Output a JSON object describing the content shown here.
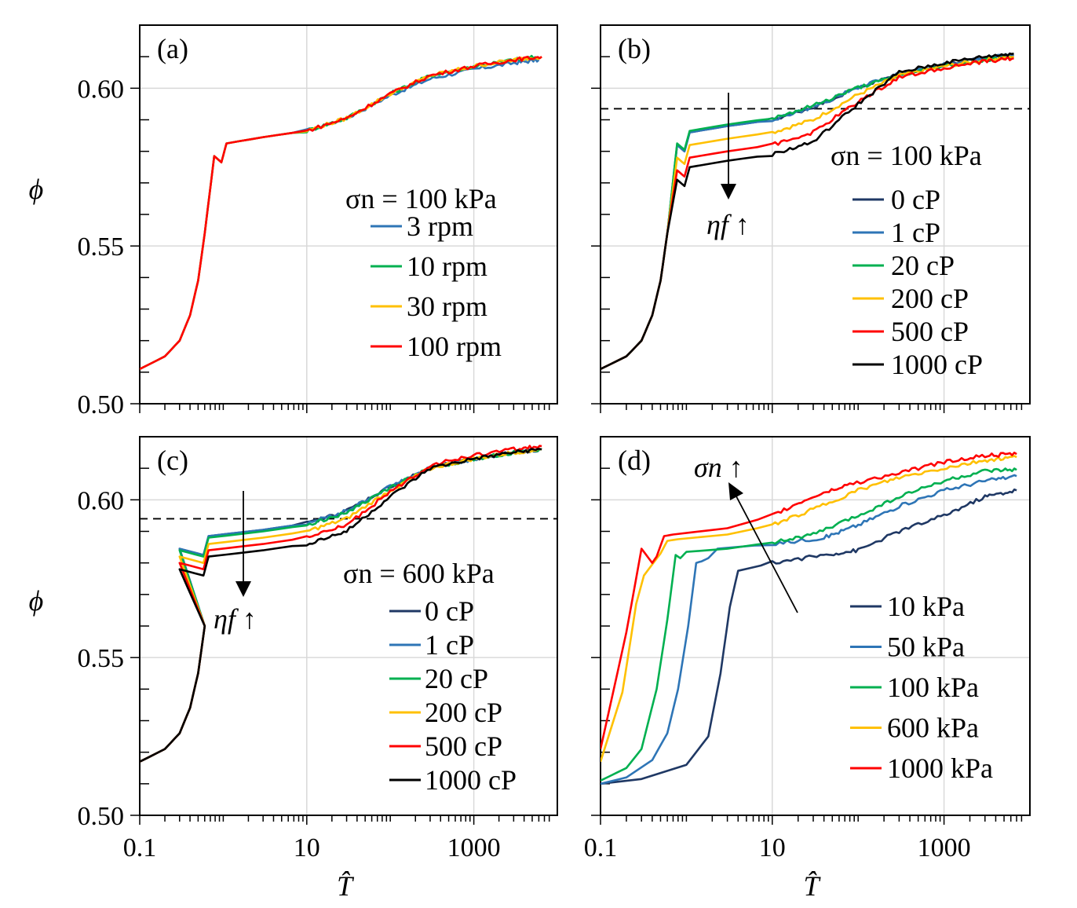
{
  "chart_data": [
    {
      "type": "line",
      "panel_label": "(a)",
      "x_scale": "log",
      "xlim": [
        0.1,
        10000
      ],
      "ylim": [
        0.5,
        0.62
      ],
      "y_ticks": [
        "0.50",
        "0.55",
        "0.60"
      ],
      "x_ticks": [],
      "ylabel": "ϕ",
      "xlabel": "",
      "grid": true,
      "legend_title": "σn = 100 kPa",
      "legend_placement": "center-right",
      "series": [
        {
          "name": "3 rpm",
          "color": "#2e75b6",
          "shape": "base",
          "end": [
            0.609,
            6000
          ],
          "wiggle": 0.0003
        },
        {
          "name": "10 rpm",
          "color": "#00b050",
          "shape": "base",
          "end": [
            0.61,
            6000
          ],
          "wiggle": 0.0003
        },
        {
          "name": "30 rpm",
          "color": "#ffc000",
          "shape": "base",
          "end": [
            0.61,
            7000
          ],
          "wiggle": 0.0002
        },
        {
          "name": "100 rpm",
          "color": "#ff0000",
          "shape": "base",
          "end": [
            0.61,
            6500
          ],
          "wiggle": 0.0004
        }
      ]
    },
    {
      "type": "line",
      "panel_label": "(b)",
      "x_scale": "log",
      "xlim": [
        0.1,
        10000
      ],
      "ylim": [
        0.5,
        0.62
      ],
      "y_ticks": [],
      "x_ticks": [],
      "ylabel": "",
      "xlabel": "",
      "grid": true,
      "dashed_line_y": 0.5935,
      "legend_title": "σn = 100 kPa",
      "legend_placement": "center-right",
      "annotation": "ηf ↑",
      "series": [
        {
          "name": "0 cP",
          "color": "#1f3864",
          "plateau": 0.588,
          "end": 0.6105
        },
        {
          "name": "1 cP",
          "color": "#2e75b6",
          "plateau": 0.588,
          "end": 0.6105
        },
        {
          "name": "20 cP",
          "color": "#00b050",
          "plateau": 0.5885,
          "end": 0.61
        },
        {
          "name": "200 cP",
          "color": "#ffc000",
          "plateau": 0.584,
          "end": 0.61
        },
        {
          "name": "500 cP",
          "color": "#ff0000",
          "plateau": 0.58,
          "end": 0.6095
        },
        {
          "name": "1000 cP",
          "color": "#000000",
          "plateau": 0.577,
          "end": 0.611
        }
      ]
    },
    {
      "type": "line",
      "panel_label": "(c)",
      "x_scale": "log",
      "xlim": [
        0.1,
        10000
      ],
      "ylim": [
        0.5,
        0.62
      ],
      "y_ticks": [
        "0.50",
        "0.55",
        "0.60"
      ],
      "x_ticks": [
        "0.1",
        "10",
        "1000"
      ],
      "ylabel": "ϕ",
      "xlabel": "T̂",
      "grid": true,
      "dashed_line_y": 0.594,
      "legend_title": "σn = 600 kPa",
      "legend_placement": "center-right",
      "annotation": "ηf ↑",
      "series": [
        {
          "name": "0 cP",
          "color": "#1f3864",
          "plateau": 0.5905,
          "end": 0.616
        },
        {
          "name": "1 cP",
          "color": "#2e75b6",
          "plateau": 0.5905,
          "end": 0.616
        },
        {
          "name": "20 cP",
          "color": "#00b050",
          "plateau": 0.59,
          "end": 0.616
        },
        {
          "name": "200 cP",
          "color": "#ffc000",
          "plateau": 0.588,
          "end": 0.616
        },
        {
          "name": "500 cP",
          "color": "#ff0000",
          "plateau": 0.586,
          "end": 0.617
        },
        {
          "name": "1000 cP",
          "color": "#000000",
          "plateau": 0.584,
          "end": 0.616
        }
      ]
    },
    {
      "type": "line",
      "panel_label": "(d)",
      "x_scale": "log",
      "xlim": [
        0.1,
        10000
      ],
      "ylim": [
        0.5,
        0.62
      ],
      "y_ticks": [],
      "x_ticks": [
        "0.1",
        "10",
        "1000"
      ],
      "ylabel": "",
      "xlabel": "T̂",
      "grid": true,
      "legend_title": "",
      "legend_placement": "bottom-right",
      "annotation": "σn ↑",
      "series": [
        {
          "name": "10 kPa",
          "color": "#1f3864",
          "points": [
            [
              0.1,
              0.51
            ],
            [
              0.3,
              0.5115
            ],
            [
              1.0,
              0.516
            ],
            [
              1.8,
              0.525
            ],
            [
              2.5,
              0.545
            ],
            [
              3.2,
              0.566
            ],
            [
              4.0,
              0.5775
            ],
            [
              10,
              0.58
            ],
            [
              40,
              0.5825
            ],
            [
              100,
              0.584
            ],
            [
              300,
              0.59
            ],
            [
              1000,
              0.595
            ],
            [
              3000,
              0.601
            ],
            [
              7000,
              0.603
            ]
          ]
        },
        {
          "name": "50 kPa",
          "color": "#2e75b6",
          "points": [
            [
              0.1,
              0.51
            ],
            [
              0.2,
              0.512
            ],
            [
              0.4,
              0.5175
            ],
            [
              0.6,
              0.526
            ],
            [
              0.8,
              0.54
            ],
            [
              1.05,
              0.56
            ],
            [
              1.3,
              0.58
            ],
            [
              1.5,
              0.5805
            ],
            [
              1.8,
              0.5815
            ],
            [
              2.3,
              0.5845
            ],
            [
              10,
              0.586
            ],
            [
              40,
              0.588
            ],
            [
              100,
              0.592
            ],
            [
              300,
              0.598
            ],
            [
              1000,
              0.603
            ],
            [
              3000,
              0.606
            ],
            [
              7000,
              0.6075
            ]
          ]
        },
        {
          "name": "100 kPa",
          "color": "#00b050",
          "points": [
            [
              0.1,
              0.511
            ],
            [
              0.2,
              0.515
            ],
            [
              0.3,
              0.521
            ],
            [
              0.45,
              0.54
            ],
            [
              0.6,
              0.562
            ],
            [
              0.75,
              0.5825
            ],
            [
              0.85,
              0.5815
            ],
            [
              1.0,
              0.5835
            ],
            [
              3,
              0.5845
            ],
            [
              10,
              0.5865
            ],
            [
              30,
              0.589
            ],
            [
              100,
              0.595
            ],
            [
              300,
              0.601
            ],
            [
              1000,
              0.606
            ],
            [
              3000,
              0.609
            ],
            [
              7000,
              0.6095
            ]
          ]
        },
        {
          "name": "600 kPa",
          "color": "#ffc000",
          "points": [
            [
              0.1,
              0.517
            ],
            [
              0.18,
              0.539
            ],
            [
              0.26,
              0.567
            ],
            [
              0.32,
              0.576
            ],
            [
              0.5,
              0.583
            ],
            [
              0.6,
              0.587
            ],
            [
              0.8,
              0.5875
            ],
            [
              3,
              0.589
            ],
            [
              10,
              0.592
            ],
            [
              30,
              0.597
            ],
            [
              100,
              0.603
            ],
            [
              300,
              0.607
            ],
            [
              1000,
              0.61
            ],
            [
              3000,
              0.6125
            ],
            [
              7000,
              0.6135
            ]
          ]
        },
        {
          "name": "1000 kPa",
          "color": "#ff0000",
          "points": [
            [
              0.1,
              0.521
            ],
            [
              0.2,
              0.558
            ],
            [
              0.3,
              0.5845
            ],
            [
              0.4,
              0.58
            ],
            [
              0.45,
              0.582
            ],
            [
              0.55,
              0.5885
            ],
            [
              0.7,
              0.589
            ],
            [
              3,
              0.591
            ],
            [
              10,
              0.595
            ],
            [
              30,
              0.601
            ],
            [
              80,
              0.605
            ],
            [
              300,
              0.6085
            ],
            [
              1000,
              0.612
            ],
            [
              3000,
              0.614
            ],
            [
              7000,
              0.6145
            ]
          ]
        }
      ]
    }
  ]
}
